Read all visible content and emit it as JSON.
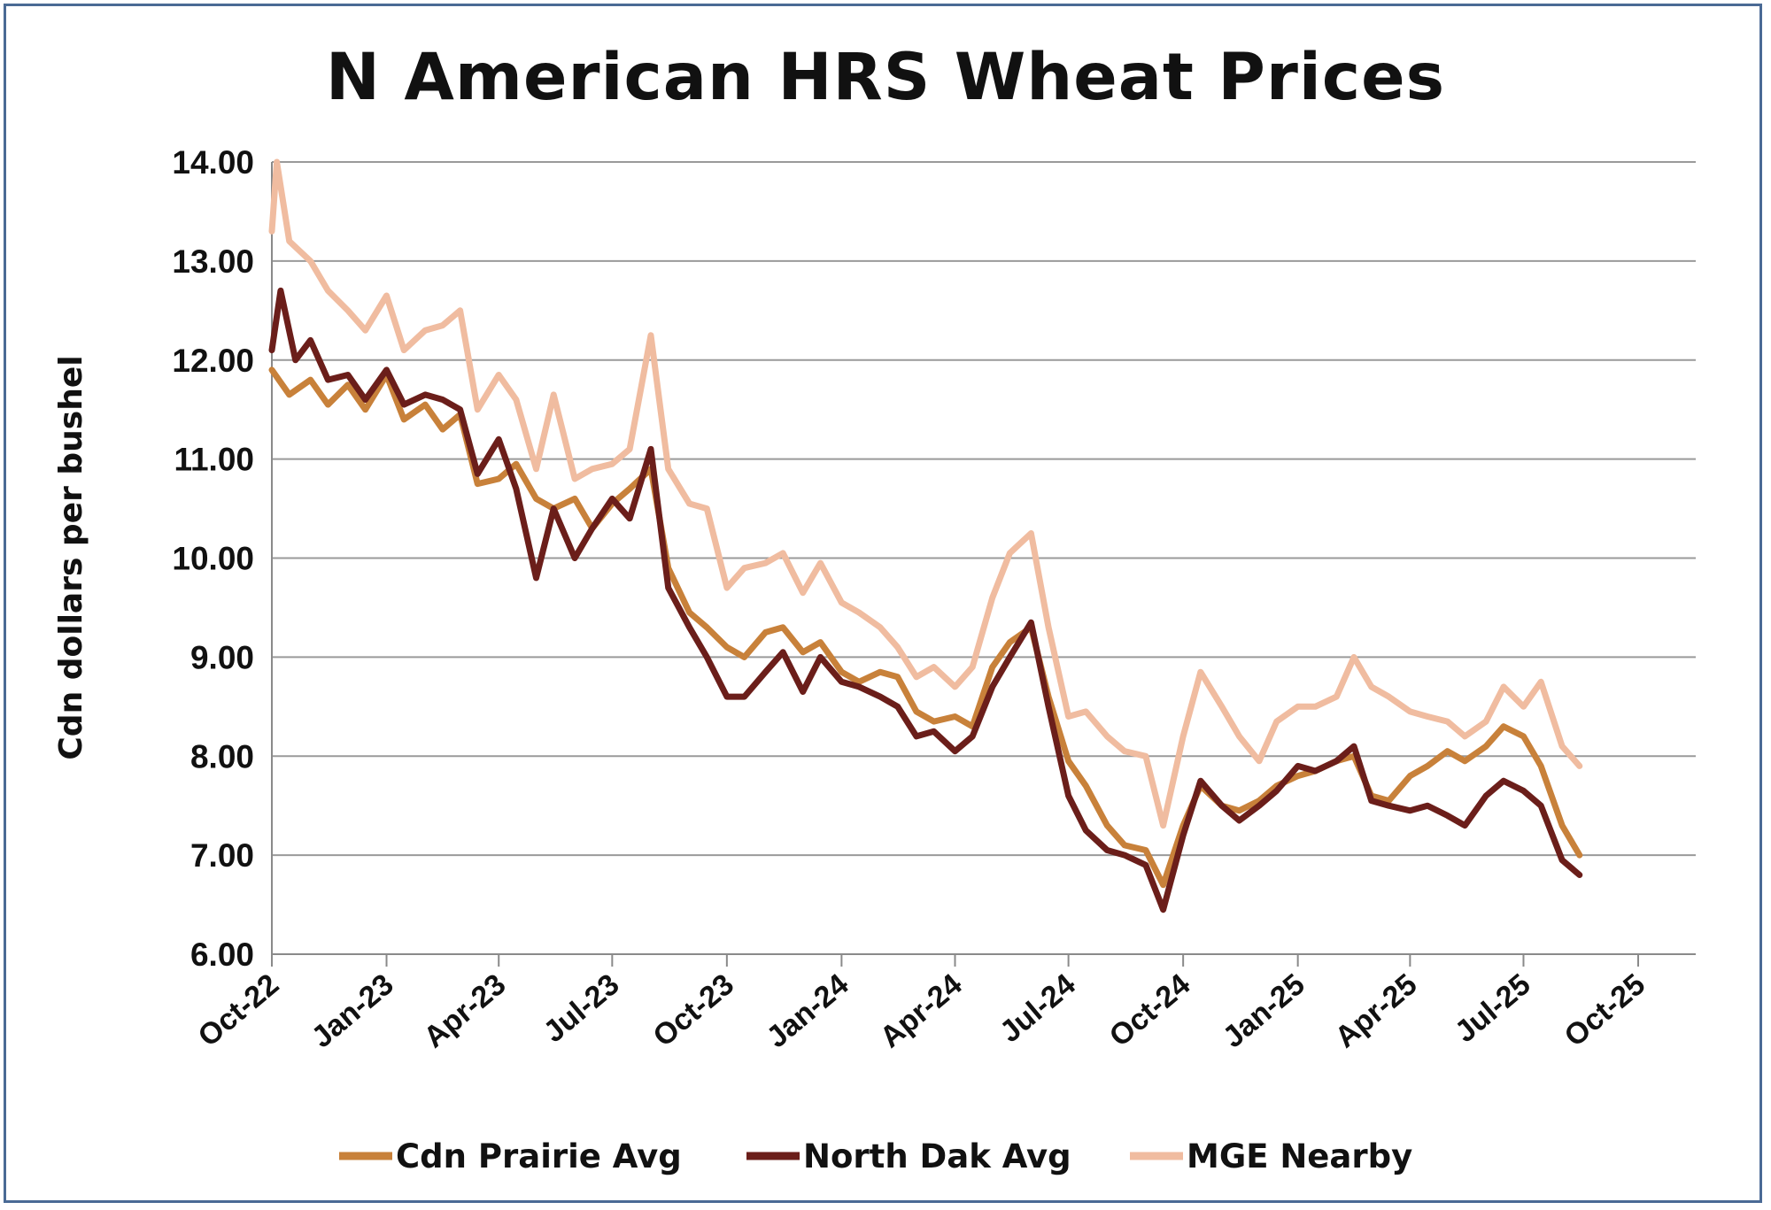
{
  "chart_data": {
    "type": "line",
    "title": "N American HRS Wheat Prices",
    "xlabel": "",
    "ylabel": "Cdn dollars per bushel",
    "ylim": [
      6.0,
      14.0
    ],
    "yticks": [
      "6.00",
      "7.00",
      "8.00",
      "9.00",
      "10.00",
      "11.00",
      "12.00",
      "13.00",
      "14.00"
    ],
    "xlim": [
      "2022-10",
      "2025-10"
    ],
    "xticks": [
      "Oct-22",
      "Jan-23",
      "Apr-23",
      "Jul-23",
      "Oct-23",
      "Jan-24",
      "Apr-24",
      "Jul-24",
      "Oct-24",
      "Jan-25",
      "Apr-25",
      "Jul-25",
      "Oct-25"
    ],
    "grid": "horizontal",
    "legend_position": "bottom",
    "series": [
      {
        "name": "Cdn Prairie Avg",
        "color": "#c8813a",
        "points": [
          [
            "2022-10-01",
            11.9
          ],
          [
            "2022-10-15",
            11.65
          ],
          [
            "2022-11-01",
            11.8
          ],
          [
            "2022-11-15",
            11.55
          ],
          [
            "2022-12-01",
            11.75
          ],
          [
            "2022-12-15",
            11.5
          ],
          [
            "2023-01-01",
            11.85
          ],
          [
            "2023-01-15",
            11.4
          ],
          [
            "2023-02-01",
            11.55
          ],
          [
            "2023-02-15",
            11.3
          ],
          [
            "2023-03-01",
            11.45
          ],
          [
            "2023-03-15",
            10.75
          ],
          [
            "2023-04-01",
            10.8
          ],
          [
            "2023-04-15",
            10.95
          ],
          [
            "2023-05-01",
            10.6
          ],
          [
            "2023-05-15",
            10.5
          ],
          [
            "2023-06-01",
            10.6
          ],
          [
            "2023-06-15",
            10.3
          ],
          [
            "2023-07-01",
            10.55
          ],
          [
            "2023-07-15",
            10.7
          ],
          [
            "2023-08-01",
            10.9
          ],
          [
            "2023-08-15",
            9.9
          ],
          [
            "2023-09-01",
            9.45
          ],
          [
            "2023-09-15",
            9.3
          ],
          [
            "2023-10-01",
            9.1
          ],
          [
            "2023-10-15",
            9.0
          ],
          [
            "2023-11-01",
            9.25
          ],
          [
            "2023-11-15",
            9.3
          ],
          [
            "2023-12-01",
            9.05
          ],
          [
            "2023-12-15",
            9.15
          ],
          [
            "2024-01-01",
            8.85
          ],
          [
            "2024-01-15",
            8.75
          ],
          [
            "2024-02-01",
            8.85
          ],
          [
            "2024-02-15",
            8.8
          ],
          [
            "2024-03-01",
            8.45
          ],
          [
            "2024-03-15",
            8.35
          ],
          [
            "2024-04-01",
            8.4
          ],
          [
            "2024-04-15",
            8.3
          ],
          [
            "2024-05-01",
            8.9
          ],
          [
            "2024-05-15",
            9.15
          ],
          [
            "2024-06-01",
            9.3
          ],
          [
            "2024-06-15",
            8.6
          ],
          [
            "2024-07-01",
            7.95
          ],
          [
            "2024-07-15",
            7.7
          ],
          [
            "2024-08-01",
            7.3
          ],
          [
            "2024-08-15",
            7.1
          ],
          [
            "2024-09-01",
            7.05
          ],
          [
            "2024-09-15",
            6.7
          ],
          [
            "2024-10-01",
            7.3
          ],
          [
            "2024-10-15",
            7.7
          ],
          [
            "2024-11-01",
            7.5
          ],
          [
            "2024-11-15",
            7.45
          ],
          [
            "2024-12-01",
            7.55
          ],
          [
            "2024-12-15",
            7.7
          ],
          [
            "2025-01-01",
            7.8
          ],
          [
            "2025-01-15",
            7.85
          ],
          [
            "2025-02-01",
            7.95
          ],
          [
            "2025-02-15",
            8.0
          ],
          [
            "2025-03-01",
            7.6
          ],
          [
            "2025-03-15",
            7.55
          ],
          [
            "2025-04-01",
            7.8
          ],
          [
            "2025-04-15",
            7.9
          ],
          [
            "2025-05-01",
            8.05
          ],
          [
            "2025-05-15",
            7.95
          ],
          [
            "2025-06-01",
            8.1
          ],
          [
            "2025-06-15",
            8.3
          ],
          [
            "2025-07-01",
            8.2
          ],
          [
            "2025-07-15",
            7.9
          ],
          [
            "2025-08-01",
            7.3
          ],
          [
            "2025-08-15",
            7.0
          ]
        ]
      },
      {
        "name": "North Dak Avg",
        "color": "#6b1e1a",
        "points": [
          [
            "2022-10-01",
            12.1
          ],
          [
            "2022-10-08",
            12.7
          ],
          [
            "2022-10-20",
            12.0
          ],
          [
            "2022-11-01",
            12.2
          ],
          [
            "2022-11-15",
            11.8
          ],
          [
            "2022-12-01",
            11.85
          ],
          [
            "2022-12-15",
            11.6
          ],
          [
            "2023-01-01",
            11.9
          ],
          [
            "2023-01-15",
            11.55
          ],
          [
            "2023-02-01",
            11.65
          ],
          [
            "2023-02-15",
            11.6
          ],
          [
            "2023-03-01",
            11.5
          ],
          [
            "2023-03-15",
            10.85
          ],
          [
            "2023-04-01",
            11.2
          ],
          [
            "2023-04-15",
            10.7
          ],
          [
            "2023-05-01",
            9.8
          ],
          [
            "2023-05-15",
            10.5
          ],
          [
            "2023-06-01",
            10.0
          ],
          [
            "2023-06-15",
            10.3
          ],
          [
            "2023-07-01",
            10.6
          ],
          [
            "2023-07-15",
            10.4
          ],
          [
            "2023-08-01",
            11.1
          ],
          [
            "2023-08-15",
            9.7
          ],
          [
            "2023-09-01",
            9.3
          ],
          [
            "2023-09-15",
            9.0
          ],
          [
            "2023-10-01",
            8.6
          ],
          [
            "2023-10-15",
            8.6
          ],
          [
            "2023-11-01",
            8.85
          ],
          [
            "2023-11-15",
            9.05
          ],
          [
            "2023-12-01",
            8.65
          ],
          [
            "2023-12-15",
            9.0
          ],
          [
            "2024-01-01",
            8.75
          ],
          [
            "2024-01-15",
            8.7
          ],
          [
            "2024-02-01",
            8.6
          ],
          [
            "2024-02-15",
            8.5
          ],
          [
            "2024-03-01",
            8.2
          ],
          [
            "2024-03-15",
            8.25
          ],
          [
            "2024-04-01",
            8.05
          ],
          [
            "2024-04-15",
            8.2
          ],
          [
            "2024-05-01",
            8.7
          ],
          [
            "2024-05-15",
            9.0
          ],
          [
            "2024-06-01",
            9.35
          ],
          [
            "2024-06-15",
            8.5
          ],
          [
            "2024-07-01",
            7.6
          ],
          [
            "2024-07-15",
            7.25
          ],
          [
            "2024-08-01",
            7.05
          ],
          [
            "2024-08-15",
            7.0
          ],
          [
            "2024-09-01",
            6.9
          ],
          [
            "2024-09-15",
            6.45
          ],
          [
            "2024-10-01",
            7.2
          ],
          [
            "2024-10-15",
            7.75
          ],
          [
            "2024-11-01",
            7.5
          ],
          [
            "2024-11-15",
            7.35
          ],
          [
            "2024-12-01",
            7.5
          ],
          [
            "2024-12-15",
            7.65
          ],
          [
            "2025-01-01",
            7.9
          ],
          [
            "2025-01-15",
            7.85
          ],
          [
            "2025-02-01",
            7.95
          ],
          [
            "2025-02-15",
            8.1
          ],
          [
            "2025-03-01",
            7.55
          ],
          [
            "2025-03-15",
            7.5
          ],
          [
            "2025-04-01",
            7.45
          ],
          [
            "2025-04-15",
            7.5
          ],
          [
            "2025-05-01",
            7.4
          ],
          [
            "2025-05-15",
            7.3
          ],
          [
            "2025-06-01",
            7.6
          ],
          [
            "2025-06-15",
            7.75
          ],
          [
            "2025-07-01",
            7.65
          ],
          [
            "2025-07-15",
            7.5
          ],
          [
            "2025-08-01",
            6.95
          ],
          [
            "2025-08-15",
            6.8
          ]
        ]
      },
      {
        "name": "MGE Nearby",
        "color": "#f0bca0",
        "points": [
          [
            "2022-10-01",
            13.3
          ],
          [
            "2022-10-05",
            14.0
          ],
          [
            "2022-10-15",
            13.2
          ],
          [
            "2022-11-01",
            13.0
          ],
          [
            "2022-11-15",
            12.7
          ],
          [
            "2022-12-01",
            12.5
          ],
          [
            "2022-12-15",
            12.3
          ],
          [
            "2023-01-01",
            12.65
          ],
          [
            "2023-01-15",
            12.1
          ],
          [
            "2023-02-01",
            12.3
          ],
          [
            "2023-02-15",
            12.35
          ],
          [
            "2023-03-01",
            12.5
          ],
          [
            "2023-03-15",
            11.5
          ],
          [
            "2023-04-01",
            11.85
          ],
          [
            "2023-04-15",
            11.6
          ],
          [
            "2023-05-01",
            10.9
          ],
          [
            "2023-05-15",
            11.65
          ],
          [
            "2023-06-01",
            10.8
          ],
          [
            "2023-06-15",
            10.9
          ],
          [
            "2023-07-01",
            10.95
          ],
          [
            "2023-07-15",
            11.1
          ],
          [
            "2023-08-01",
            12.25
          ],
          [
            "2023-08-15",
            10.9
          ],
          [
            "2023-09-01",
            10.55
          ],
          [
            "2023-09-15",
            10.5
          ],
          [
            "2023-10-01",
            9.7
          ],
          [
            "2023-10-15",
            9.9
          ],
          [
            "2023-11-01",
            9.95
          ],
          [
            "2023-11-15",
            10.05
          ],
          [
            "2023-12-01",
            9.65
          ],
          [
            "2023-12-15",
            9.95
          ],
          [
            "2024-01-01",
            9.55
          ],
          [
            "2024-01-15",
            9.45
          ],
          [
            "2024-02-01",
            9.3
          ],
          [
            "2024-02-15",
            9.1
          ],
          [
            "2024-03-01",
            8.8
          ],
          [
            "2024-03-15",
            8.9
          ],
          [
            "2024-04-01",
            8.7
          ],
          [
            "2024-04-15",
            8.9
          ],
          [
            "2024-05-01",
            9.6
          ],
          [
            "2024-05-15",
            10.05
          ],
          [
            "2024-06-01",
            10.25
          ],
          [
            "2024-06-15",
            9.3
          ],
          [
            "2024-07-01",
            8.4
          ],
          [
            "2024-07-15",
            8.45
          ],
          [
            "2024-08-01",
            8.2
          ],
          [
            "2024-08-15",
            8.05
          ],
          [
            "2024-09-01",
            8.0
          ],
          [
            "2024-09-15",
            7.3
          ],
          [
            "2024-10-01",
            8.2
          ],
          [
            "2024-10-15",
            8.85
          ],
          [
            "2024-11-01",
            8.5
          ],
          [
            "2024-11-15",
            8.2
          ],
          [
            "2024-12-01",
            7.95
          ],
          [
            "2024-12-15",
            8.35
          ],
          [
            "2025-01-01",
            8.5
          ],
          [
            "2025-01-15",
            8.5
          ],
          [
            "2025-02-01",
            8.6
          ],
          [
            "2025-02-15",
            9.0
          ],
          [
            "2025-03-01",
            8.7
          ],
          [
            "2025-03-15",
            8.6
          ],
          [
            "2025-04-01",
            8.45
          ],
          [
            "2025-04-15",
            8.4
          ],
          [
            "2025-05-01",
            8.35
          ],
          [
            "2025-05-15",
            8.2
          ],
          [
            "2025-06-01",
            8.35
          ],
          [
            "2025-06-15",
            8.7
          ],
          [
            "2025-07-01",
            8.5
          ],
          [
            "2025-07-15",
            8.75
          ],
          [
            "2025-08-01",
            8.1
          ],
          [
            "2025-08-15",
            7.9
          ]
        ]
      }
    ]
  }
}
